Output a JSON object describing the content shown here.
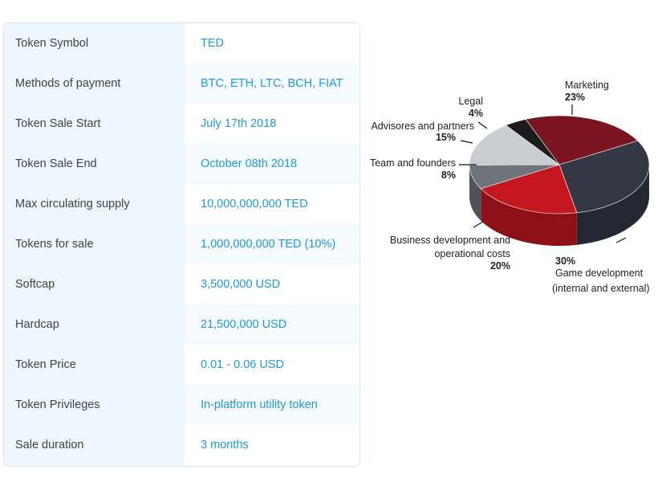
{
  "table": {
    "rows": [
      {
        "label": "Token Symbol",
        "value": "TED"
      },
      {
        "label": "Methods of payment",
        "value": "BTC, ETH, LTC, BCH, FIAT"
      },
      {
        "label": "Token Sale Start",
        "value": "July 17th 2018"
      },
      {
        "label": "Token Sale End",
        "value": "October 08th 2018"
      },
      {
        "label": "Max circulating supply",
        "value": "10,000,000,000 TED"
      },
      {
        "label": "Tokens for sale",
        "value": "1,000,000,000 TED (10%)"
      },
      {
        "label": "Softcap",
        "value": "3,500,000 USD"
      },
      {
        "label": "Hardcap",
        "value": "21,500,000 USD"
      },
      {
        "label": "Token Price",
        "value": "0.01 - 0.06 USD"
      },
      {
        "label": "Token Privileges",
        "value": "In-platform utility token"
      },
      {
        "label": "Sale duration",
        "value": "3 months"
      }
    ],
    "colors": {
      "label_bg": "#eef6fe",
      "label_text": "#3c4350",
      "value_text": "#1f9ad8"
    }
  },
  "chart_data": {
    "type": "pie",
    "style": "3d",
    "slices": [
      {
        "name": "Marketing",
        "percent_label": "23%",
        "value": 23,
        "color": "#7a1520"
      },
      {
        "name": "Game development",
        "name_line2": "(internal and external)",
        "percent_label": "30%",
        "value": 30,
        "color": "#343845"
      },
      {
        "name": "Business development and",
        "name_line2": "operational costs",
        "percent_label": "20%",
        "value": 20,
        "color": "#c4161f"
      },
      {
        "name": "Team and founders",
        "percent_label": "8%",
        "value": 8,
        "color": "#6e737c"
      },
      {
        "name": "Advisores and partners",
        "percent_label": "15%",
        "value": 15,
        "color": "#c9ccd0"
      },
      {
        "name": "Legal",
        "percent_label": "4%",
        "value": 4,
        "color": "#1c1c1c"
      }
    ]
  }
}
